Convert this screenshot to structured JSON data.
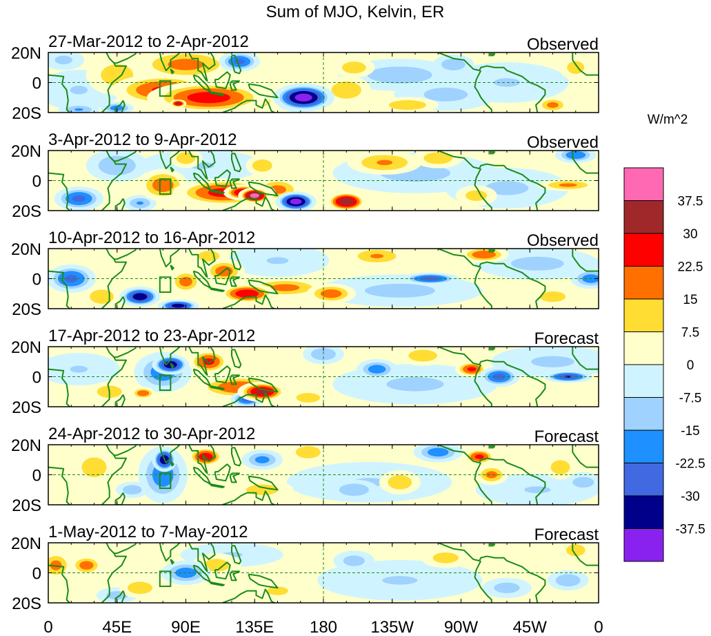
{
  "chart_data": {
    "type": "heatmap",
    "title": "Sum of MJO, Kelvin, ER",
    "units": "W/m^2",
    "lon_range": [
      0,
      360
    ],
    "lat_range": [
      -20,
      20
    ],
    "x_tick_labels": [
      "0",
      "45E",
      "90E",
      "135E",
      "180",
      "135W",
      "90W",
      "45W",
      "0"
    ],
    "y_tick_labels": [
      "20N",
      "0",
      "20S"
    ],
    "colorbar": {
      "levels": [
        "37.5",
        "30",
        "22.5",
        "15",
        "7.5",
        "0",
        "-7.5",
        "-15",
        "-22.5",
        "-30",
        "-37.5"
      ],
      "colors": [
        "#ff69b4",
        "#a0282a",
        "#ff0000",
        "#ff7000",
        "#ffdd33",
        "#ffffcc",
        "#d0f4ff",
        "#a0d2ff",
        "#1e90ff",
        "#4169e1",
        "#00008b",
        "#8a22ef"
      ]
    },
    "panels": [
      {
        "title": "27-Mar-2012 to 2-Apr-2012",
        "label": "Observed",
        "blobs": [
          [
            20,
            -5,
            -8,
            20,
            10
          ],
          [
            230,
            5,
            -12,
            30,
            8
          ],
          [
            260,
            -8,
            -10,
            25,
            8
          ],
          [
            300,
            0,
            -8,
            30,
            10
          ],
          [
            75,
            -5,
            24,
            25,
            8
          ],
          [
            105,
            -10,
            27,
            30,
            8
          ],
          [
            128,
            -12,
            26,
            18,
            6
          ],
          [
            90,
            12,
            18,
            25,
            8
          ],
          [
            110,
            18,
            15,
            15,
            4
          ],
          [
            45,
            5,
            12,
            15,
            10
          ],
          [
            167,
            -10,
            -42,
            15,
            7
          ],
          [
            163,
            -13,
            -40,
            10,
            5
          ],
          [
            125,
            14,
            -25,
            10,
            5
          ],
          [
            45,
            -17,
            -20,
            8,
            3
          ],
          [
            20,
            -18,
            -16,
            10,
            3
          ],
          [
            195,
            -5,
            15,
            12,
            7
          ],
          [
            200,
            10,
            14,
            10,
            5
          ],
          [
            235,
            -15,
            15,
            15,
            4
          ],
          [
            330,
            -15,
            18,
            8,
            4
          ],
          [
            265,
            12,
            -14,
            10,
            5
          ],
          [
            345,
            10,
            12,
            8,
            6
          ],
          [
            10,
            15,
            -10,
            10,
            5
          ],
          [
            85,
            -14,
            33,
            4,
            2
          ]
        ]
      },
      {
        "title": "3-Apr-2012 to 9-Apr-2012",
        "label": "Observed",
        "blobs": [
          [
            240,
            5,
            -10,
            40,
            10
          ],
          [
            300,
            -5,
            -9,
            30,
            10
          ],
          [
            100,
            10,
            -8,
            30,
            8
          ],
          [
            115,
            -8,
            26,
            25,
            7
          ],
          [
            135,
            -10,
            42,
            8,
            4
          ],
          [
            128,
            -8,
            33,
            10,
            4
          ],
          [
            75,
            -3,
            20,
            12,
            8
          ],
          [
            150,
            -6,
            18,
            12,
            6
          ],
          [
            162,
            -14,
            -42,
            10,
            5
          ],
          [
            195,
            -14,
            36,
            10,
            5
          ],
          [
            20,
            -12,
            -25,
            12,
            6
          ],
          [
            45,
            10,
            -15,
            15,
            8
          ],
          [
            340,
            -3,
            17,
            15,
            3
          ],
          [
            345,
            17,
            -22,
            10,
            4
          ],
          [
            220,
            12,
            16,
            18,
            6
          ],
          [
            255,
            15,
            14,
            12,
            5
          ],
          [
            90,
            15,
            14,
            8,
            5
          ],
          [
            140,
            10,
            15,
            8,
            5
          ],
          [
            280,
            -10,
            12,
            10,
            5
          ],
          [
            60,
            -15,
            -16,
            8,
            4
          ]
        ]
      },
      {
        "title": "10-Apr-2012 to 16-Apr-2012",
        "label": "Observed",
        "blobs": [
          [
            230,
            -8,
            -10,
            40,
            8
          ],
          [
            320,
            10,
            -10,
            30,
            8
          ],
          [
            150,
            12,
            -8,
            25,
            8
          ],
          [
            60,
            -12,
            -36,
            10,
            5
          ],
          [
            85,
            -18,
            -35,
            10,
            3
          ],
          [
            15,
            0,
            -25,
            12,
            7
          ],
          [
            130,
            -10,
            29,
            14,
            5
          ],
          [
            115,
            5,
            20,
            10,
            6
          ],
          [
            155,
            -6,
            18,
            20,
            5
          ],
          [
            185,
            -10,
            20,
            12,
            5
          ],
          [
            285,
            16,
            22,
            12,
            4
          ],
          [
            215,
            15,
            16,
            15,
            5
          ],
          [
            250,
            0,
            -28,
            14,
            3
          ],
          [
            355,
            0,
            -20,
            10,
            5
          ],
          [
            90,
            -2,
            19,
            8,
            6
          ],
          [
            35,
            -12,
            14,
            10,
            6
          ],
          [
            330,
            -12,
            12,
            12,
            5
          ],
          [
            105,
            15,
            12,
            10,
            5
          ]
        ]
      },
      {
        "title": "17-Apr-2012 to 23-Apr-2012",
        "label": "Forecast",
        "blobs": [
          [
            240,
            -5,
            -9,
            40,
            10
          ],
          [
            330,
            10,
            -9,
            30,
            8
          ],
          [
            20,
            5,
            -8,
            20,
            8
          ],
          [
            80,
            8,
            -36,
            9,
            5
          ],
          [
            75,
            3,
            -20,
            14,
            10
          ],
          [
            140,
            -10,
            33,
            12,
            5
          ],
          [
            125,
            -7,
            22,
            22,
            6
          ],
          [
            105,
            10,
            25,
            10,
            6
          ],
          [
            130,
            -15,
            -26,
            8,
            4
          ],
          [
            62,
            -11,
            22,
            6,
            3
          ],
          [
            295,
            0,
            -26,
            10,
            5
          ],
          [
            277,
            5,
            25,
            8,
            4
          ],
          [
            340,
            0,
            -31,
            12,
            3
          ],
          [
            40,
            -10,
            15,
            10,
            5
          ],
          [
            180,
            15,
            -15,
            10,
            5
          ],
          [
            215,
            5,
            -20,
            10,
            5
          ],
          [
            170,
            -14,
            14,
            10,
            4
          ],
          [
            245,
            14,
            14,
            12,
            5
          ]
        ]
      },
      {
        "title": "24-Apr-2012 to 30-Apr-2012",
        "label": "Forecast",
        "blobs": [
          [
            210,
            -5,
            -8,
            40,
            10
          ],
          [
            320,
            -10,
            -8,
            30,
            8
          ],
          [
            76,
            10,
            -37,
            6,
            6
          ],
          [
            75,
            0,
            -20,
            12,
            14
          ],
          [
            103,
            12,
            28,
            9,
            5
          ],
          [
            140,
            10,
            -18,
            10,
            5
          ],
          [
            255,
            15,
            -20,
            12,
            5
          ],
          [
            282,
            12,
            25,
            8,
            4
          ],
          [
            290,
            0,
            18,
            8,
            5
          ],
          [
            30,
            5,
            15,
            10,
            8
          ],
          [
            200,
            -10,
            -15,
            12,
            5
          ],
          [
            140,
            -10,
            12,
            15,
            5
          ],
          [
            170,
            15,
            15,
            10,
            5
          ],
          [
            230,
            -5,
            14,
            10,
            6
          ],
          [
            335,
            5,
            14,
            8,
            6
          ],
          [
            55,
            -10,
            -14,
            8,
            4
          ],
          [
            350,
            -5,
            -12,
            10,
            5
          ]
        ]
      },
      {
        "title": "1-May-2012 to 7-May-2012",
        "label": "Forecast",
        "blobs": [
          [
            230,
            -5,
            -8,
            40,
            10
          ],
          [
            120,
            12,
            -8,
            25,
            6
          ],
          [
            5,
            5,
            18,
            8,
            7
          ],
          [
            25,
            5,
            20,
            8,
            5
          ],
          [
            90,
            0,
            -20,
            12,
            6
          ],
          [
            60,
            -10,
            15,
            10,
            5
          ],
          [
            110,
            5,
            12,
            12,
            6
          ],
          [
            340,
            -5,
            -15,
            10,
            5
          ],
          [
            345,
            15,
            14,
            8,
            5
          ],
          [
            150,
            -12,
            10,
            12,
            5
          ],
          [
            200,
            8,
            -12,
            10,
            5
          ],
          [
            260,
            10,
            12,
            12,
            5
          ],
          [
            300,
            -10,
            -12,
            12,
            5
          ],
          [
            45,
            -15,
            -12,
            10,
            4
          ]
        ]
      }
    ]
  }
}
